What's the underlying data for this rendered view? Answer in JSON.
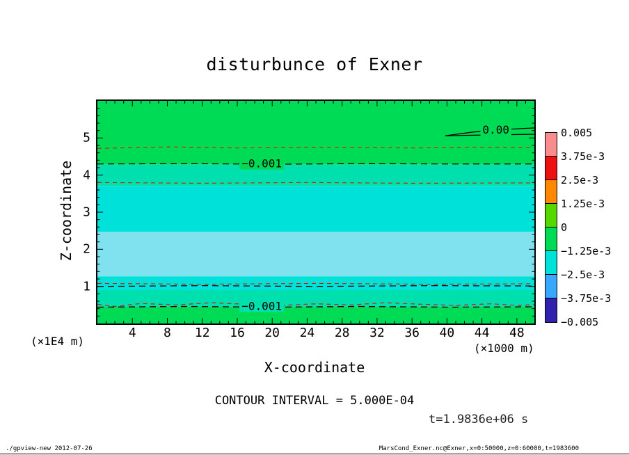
{
  "header": {
    "title": "disturbunce of Exner"
  },
  "annotations": {
    "contour_interval": "CONTOUR INTERVAL = 5.000E-04",
    "time": "t=1.9836e+06 s",
    "x_unit": "(×1000 m)",
    "y_unit": "(×1E4 m)"
  },
  "footer": {
    "left": "./gpview-new  2012-07-26",
    "right": "MarsCond_Exner.nc@Exner,x=0:50000,z=0:60000,t=1983600"
  },
  "chart_data": {
    "type": "heatmap",
    "title": "disturbunce of Exner",
    "xlabel": "X-coordinate",
    "ylabel": "Z-coordinate",
    "x_unit": "(×1000 m)",
    "y_unit": "(×1E4 m)",
    "xlim": [
      0,
      50
    ],
    "ylim": [
      0,
      6
    ],
    "x_tick_labels": [
      4,
      8,
      12,
      16,
      20,
      24,
      28,
      32,
      36,
      40,
      44,
      48
    ],
    "y_tick_labels": [
      1,
      2,
      3,
      4,
      5
    ],
    "x_major_step": 4,
    "x_minor_step": 1,
    "y_major_step": 1,
    "y_minor_step": 0.2,
    "grid": false,
    "contour_interval": "5.000E-04",
    "time": "t=1.9836e+06 s",
    "bands": [
      {
        "z_lo": 4.28,
        "z_hi": 6.0,
        "color": "#00DB55",
        "note": "green, values near 0 to -0.001"
      },
      {
        "z_lo": 3.7,
        "z_hi": 4.28,
        "color": "#00DFAE",
        "note": "teal transition band"
      },
      {
        "z_lo": 2.47,
        "z_hi": 3.7,
        "color": "#00E2D9",
        "note": "turquoise"
      },
      {
        "z_lo": 1.27,
        "z_hi": 2.47,
        "color": "#7FE2EE",
        "note": "pale blue minimum band"
      },
      {
        "z_lo": 0.9,
        "z_hi": 1.27,
        "color": "#00E2D9",
        "note": "turquoise"
      },
      {
        "z_lo": 0.45,
        "z_hi": 0.9,
        "color": "#00DFAE",
        "note": "teal transition band"
      },
      {
        "z_lo": 0.0,
        "z_hi": 0.45,
        "color": "#00DB55",
        "note": "green, values near -0.001 to 0"
      }
    ],
    "contours": [
      {
        "id": "zero-upper",
        "level": "0.00",
        "style": "solid",
        "color": "#000000",
        "width": 1.3,
        "points": [
          [
            39.8,
            5.06
          ],
          [
            43,
            5.16
          ],
          [
            46.5,
            5.23
          ],
          [
            50,
            5.27
          ]
        ],
        "label": "0.00",
        "label_x": 45.6,
        "label_z": 5.22
      },
      {
        "id": "zero-lower",
        "level": "0.00",
        "style": "solid",
        "color": "#000000",
        "width": 1.3,
        "points": [
          [
            39.8,
            5.06
          ],
          [
            44,
            5.08
          ],
          [
            50,
            5.1
          ]
        ]
      },
      {
        "id": "top-minor-1",
        "level": "-0.0005",
        "style": "dashed",
        "color": "#CC2200",
        "width": 1.1,
        "points": [
          [
            0,
            4.72
          ],
          [
            8,
            4.76
          ],
          [
            16,
            4.73
          ],
          [
            26,
            4.75
          ],
          [
            36,
            4.73
          ],
          [
            44,
            4.75
          ],
          [
            50,
            4.74
          ]
        ]
      },
      {
        "id": "top-main",
        "level": "-0.001",
        "style": "dashed",
        "color": "#000000",
        "width": 1.3,
        "points": [
          [
            0,
            4.3
          ],
          [
            10,
            4.31
          ],
          [
            20,
            4.29
          ],
          [
            30,
            4.31
          ],
          [
            40,
            4.3
          ],
          [
            50,
            4.3
          ]
        ],
        "label": "−0.001",
        "label_x": 18.8,
        "label_z": 4.31
      },
      {
        "id": "top-minor-2",
        "level": "-0.0015",
        "style": "dashed",
        "color": "#CC2200",
        "width": 1.1,
        "points": [
          [
            0,
            3.8
          ],
          [
            12,
            3.78
          ],
          [
            24,
            3.8
          ],
          [
            36,
            3.78
          ],
          [
            50,
            3.79
          ]
        ]
      },
      {
        "id": "bot-minor-1",
        "level": "-0.0015",
        "style": "dashed",
        "color": "#CC2200",
        "width": 1.1,
        "points": [
          [
            0,
            1.08
          ],
          [
            12,
            1.06
          ],
          [
            25,
            1.08
          ],
          [
            38,
            1.06
          ],
          [
            50,
            1.07
          ]
        ]
      },
      {
        "id": "bot-black-1",
        "level": "-0.0015",
        "style": "dashed",
        "color": "#000000",
        "width": 1.2,
        "points": [
          [
            0,
            1.0
          ],
          [
            12,
            1.02
          ],
          [
            25,
            1.0
          ],
          [
            38,
            1.02
          ],
          [
            50,
            1.01
          ]
        ]
      },
      {
        "id": "bot-minor-2",
        "level": "-0.0005",
        "style": "dashed",
        "color": "#CC2200",
        "width": 1.2,
        "points": [
          [
            0,
            0.52
          ],
          [
            2,
            0.46
          ],
          [
            5,
            0.54
          ],
          [
            9,
            0.5
          ],
          [
            13,
            0.56
          ],
          [
            17,
            0.52
          ],
          [
            21,
            0.49
          ],
          [
            25,
            0.53
          ],
          [
            29,
            0.5
          ],
          [
            33,
            0.56
          ],
          [
            37,
            0.52
          ],
          [
            41,
            0.49
          ],
          [
            45,
            0.53
          ],
          [
            48,
            0.49
          ],
          [
            50,
            0.51
          ]
        ]
      },
      {
        "id": "bot-main",
        "level": "-0.001",
        "style": "dashed",
        "color": "#000000",
        "width": 1.3,
        "points": [
          [
            0,
            0.44
          ],
          [
            10,
            0.46
          ],
          [
            20,
            0.44
          ],
          [
            30,
            0.46
          ],
          [
            40,
            0.44
          ],
          [
            50,
            0.45
          ]
        ],
        "label": "−0.001",
        "label_x": 18.8,
        "label_z": 0.47
      }
    ],
    "colorbar": {
      "labels": [
        "0.005",
        "3.75e-3",
        "2.5e-3",
        "1.25e-3",
        "0",
        "−1.25e-3",
        "−2.5e-3",
        "−3.75e-3",
        "−0.005"
      ],
      "colors": [
        "#F98C8C",
        "#EE1111",
        "#FF8800",
        "#55D800",
        "#00DB55",
        "#00E2D9",
        "#38A8FF",
        "#2E22AE"
      ]
    }
  }
}
